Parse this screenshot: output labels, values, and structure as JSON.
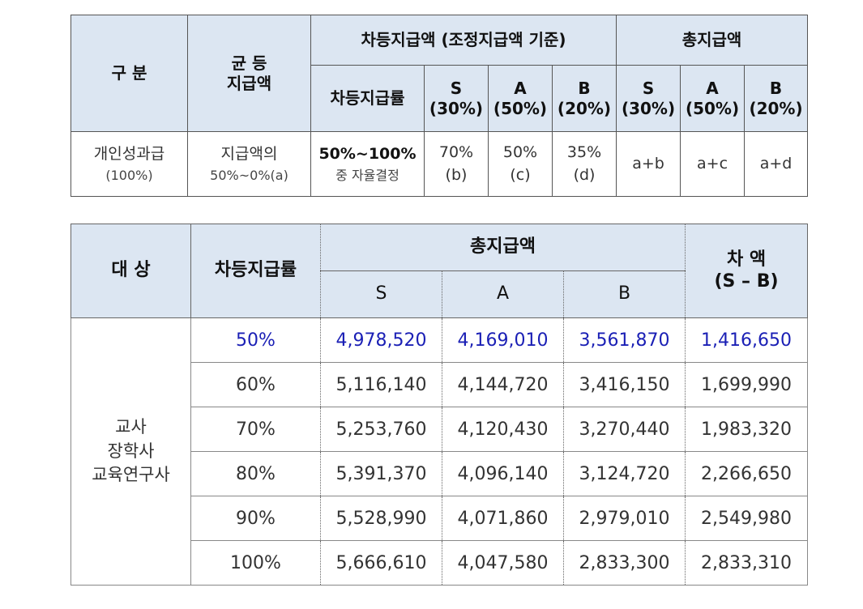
{
  "table1": {
    "headers": {
      "category": "구 분",
      "equal_line1": "균 등",
      "equal_line2": "지급액",
      "diff_group": "차등지급액 (조정지급액 기준)",
      "total_group": "총지급액",
      "diff_rate": "차등지급률",
      "diff_cols": [
        {
          "grade": "S",
          "pct": "(30%)"
        },
        {
          "grade": "A",
          "pct": "(50%)"
        },
        {
          "grade": "B",
          "pct": "(20%)"
        }
      ],
      "total_cols": [
        {
          "grade": "S",
          "pct": "(30%)"
        },
        {
          "grade": "A",
          "pct": "(50%)"
        },
        {
          "grade": "B",
          "pct": "(20%)"
        }
      ]
    },
    "row": {
      "category_line1": "개인성과급",
      "category_line2": "(100%)",
      "equal_line1": "지급액의",
      "equal_line2": "50%~0%(a)",
      "rate_line1": "50%~100%",
      "rate_line2": "중 자율결정",
      "diff_values": [
        {
          "value": "70%",
          "label": "(b)"
        },
        {
          "value": "50%",
          "label": "(c)"
        },
        {
          "value": "35%",
          "label": "(d)"
        }
      ],
      "totals": [
        "a+b",
        "a+c",
        "a+d"
      ]
    }
  },
  "table2": {
    "headers": {
      "target": "대 상",
      "rate": "차등지급률",
      "total_group": "총지급액",
      "diff_line1": "차 액",
      "diff_line2": "(S – B)",
      "grades": [
        "S",
        "A",
        "B"
      ]
    },
    "group_lines": [
      "교사",
      "장학사",
      "교육연구사"
    ],
    "rows": [
      {
        "rate": "50%",
        "s": "4,978,520",
        "a": "4,169,010",
        "b": "3,561,870",
        "diff": "1,416,650"
      },
      {
        "rate": "60%",
        "s": "5,116,140",
        "a": "4,144,720",
        "b": "3,416,150",
        "diff": "1,699,990"
      },
      {
        "rate": "70%",
        "s": "5,253,760",
        "a": "4,120,430",
        "b": "3,270,440",
        "diff": "1,983,320"
      },
      {
        "rate": "80%",
        "s": "5,391,370",
        "a": "4,096,140",
        "b": "3,124,720",
        "diff": "2,266,650"
      },
      {
        "rate": "90%",
        "s": "5,528,990",
        "a": "4,071,860",
        "b": "2,979,010",
        "diff": "2,549,980"
      },
      {
        "rate": "100%",
        "s": "5,666,610",
        "a": "4,047,580",
        "b": "2,833,300",
        "diff": "2,833,310"
      }
    ],
    "highlight_color": "#1a1fb5"
  }
}
